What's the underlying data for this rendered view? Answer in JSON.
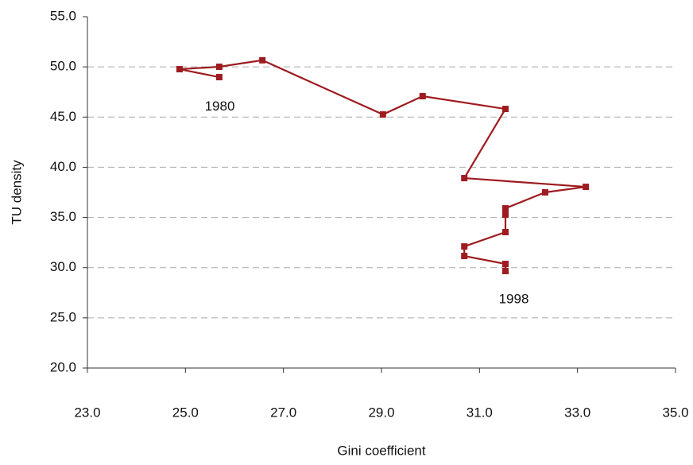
{
  "chart_data": {
    "type": "line",
    "x_label": "Gini coefficient",
    "y_label": "TU density",
    "series": [
      {
        "color": "#9e1b20",
        "x": [
          25.69,
          24.88,
          25.69,
          26.57,
          29.03,
          29.84,
          31.53,
          30.69,
          33.17,
          32.34,
          31.53,
          31.53,
          31.53,
          30.69,
          30.69,
          31.53,
          31.53
        ],
        "values": [
          48.98,
          49.77,
          50.01,
          50.66,
          45.26,
          47.08,
          45.81,
          38.92,
          38.05,
          37.5,
          35.91,
          35.28,
          33.54,
          32.11,
          31.16,
          30.37,
          29.66
        ]
      }
    ],
    "annotations": [
      {
        "text": "1980",
        "x": 25.7,
        "y": 46.0
      },
      {
        "text": "1998",
        "x": 31.7,
        "y": 26.8
      }
    ],
    "xlim": [
      23,
      35
    ],
    "xticks": [
      {
        "value": 23,
        "label": "23.0"
      },
      {
        "value": 25,
        "label": "25.0"
      },
      {
        "value": 27,
        "label": "27.0"
      },
      {
        "value": 29,
        "label": "29.0"
      },
      {
        "value": 31,
        "label": "31.0"
      },
      {
        "value": 33,
        "label": "33.0"
      },
      {
        "value": 35,
        "label": "35.0"
      }
    ],
    "ylim": [
      20,
      55
    ],
    "yticks": [
      {
        "value": 20,
        "label": "20.0"
      },
      {
        "value": 25,
        "label": "25.0"
      },
      {
        "value": 30,
        "label": "30.0"
      },
      {
        "value": 35,
        "label": "35.0"
      },
      {
        "value": 40,
        "label": "40.0"
      },
      {
        "value": 45,
        "label": "45.0"
      },
      {
        "value": 50,
        "label": "50.0"
      },
      {
        "value": 55,
        "label": "55.0"
      }
    ],
    "grid": true
  }
}
